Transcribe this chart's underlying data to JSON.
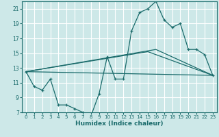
{
  "xlabel": "Humidex (Indice chaleur)",
  "bg_color": "#cde8e8",
  "grid_color": "#ffffff",
  "line_color": "#1a6b6b",
  "xlim": [
    -0.5,
    23.5
  ],
  "ylim": [
    7,
    22
  ],
  "yticks": [
    7,
    9,
    11,
    13,
    15,
    17,
    19,
    21
  ],
  "xticks": [
    0,
    1,
    2,
    3,
    4,
    5,
    6,
    7,
    8,
    9,
    10,
    11,
    12,
    13,
    14,
    15,
    16,
    17,
    18,
    19,
    20,
    21,
    22,
    23
  ],
  "series": [
    {
      "x": [
        0,
        1,
        2,
        3,
        4,
        5,
        6,
        7,
        8,
        9,
        10,
        11,
        12,
        13,
        14,
        15,
        16,
        17,
        18,
        19,
        20,
        21,
        22,
        23
      ],
      "y": [
        12.5,
        10.5,
        10.0,
        11.5,
        8.0,
        8.0,
        7.5,
        7.0,
        6.5,
        9.5,
        14.5,
        11.5,
        11.5,
        18.0,
        20.5,
        21.0,
        22.0,
        19.5,
        18.5,
        19.0,
        15.5,
        15.5,
        14.8,
        12.0
      ],
      "marker": true
    },
    {
      "x": [
        0,
        23
      ],
      "y": [
        12.5,
        12.0
      ],
      "marker": false
    },
    {
      "x": [
        0,
        15,
        23
      ],
      "y": [
        12.5,
        15.2,
        12.0
      ],
      "marker": false
    },
    {
      "x": [
        0,
        16,
        23
      ],
      "y": [
        12.5,
        15.5,
        12.0
      ],
      "marker": false
    }
  ]
}
